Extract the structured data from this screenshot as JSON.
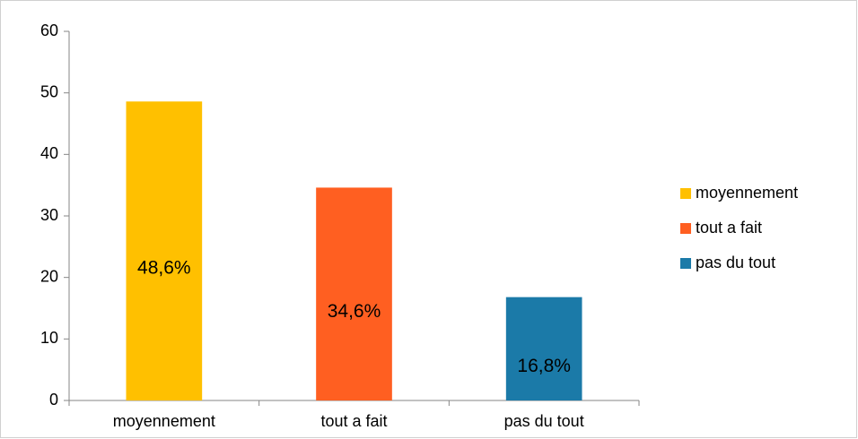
{
  "chart_data": {
    "type": "bar",
    "categories": [
      "moyennement",
      "tout a fait",
      "pas du tout"
    ],
    "values": [
      48.6,
      34.6,
      16.8
    ],
    "value_labels": [
      "48,6%",
      "34,6%",
      "16,8%"
    ],
    "colors": [
      "#ffc000",
      "#ff5f21",
      "#1b7aa8"
    ],
    "ylim": [
      0,
      60
    ],
    "yticks": [
      0,
      10,
      20,
      30,
      40,
      50,
      60
    ],
    "grid": false,
    "legend": "right"
  }
}
